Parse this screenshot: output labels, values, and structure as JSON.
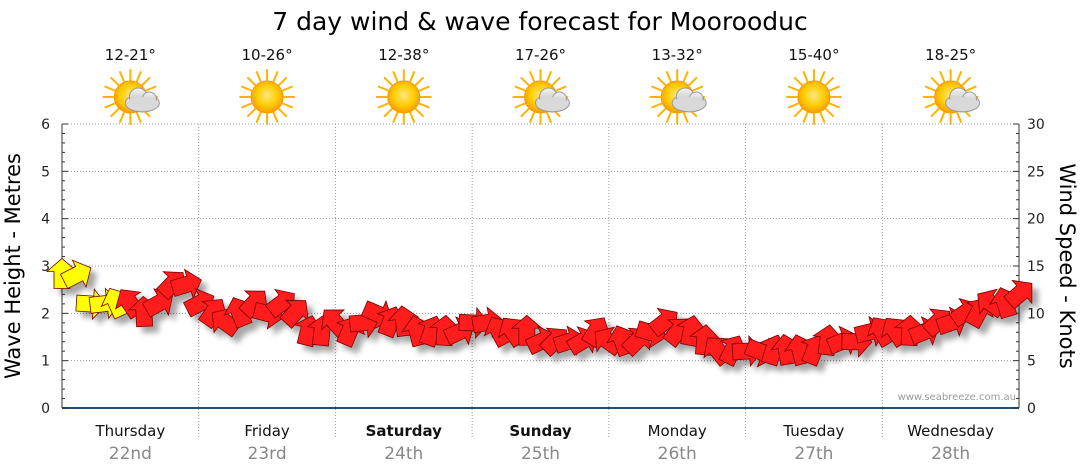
{
  "chart_data": {
    "type": "line",
    "title": "7 day wind & wave forecast for Moorooduc",
    "y_left_label": "Wave Height - Metres",
    "y_right_label": "Wind Speed - Knots",
    "y_left_range": [
      0,
      6
    ],
    "y_right_range": [
      0,
      30
    ],
    "y_left_ticks": [
      "0",
      "1",
      "2",
      "3",
      "4",
      "5",
      "6"
    ],
    "y_right_ticks": [
      "0",
      "5",
      "10",
      "15",
      "20",
      "25",
      "30"
    ],
    "grid": true,
    "days": [
      {
        "name": "Thursday",
        "date": "22nd",
        "bold": false,
        "temp": "12-21°",
        "icon": "partly-cloudy-icon"
      },
      {
        "name": "Friday",
        "date": "23rd",
        "bold": false,
        "temp": "10-26°",
        "icon": "sunny-icon"
      },
      {
        "name": "Saturday",
        "date": "24th",
        "bold": true,
        "temp": "12-38°",
        "icon": "sunny-icon"
      },
      {
        "name": "Sunday",
        "date": "25th",
        "bold": true,
        "temp": "17-26°",
        "icon": "partly-cloudy-icon"
      },
      {
        "name": "Monday",
        "date": "26th",
        "bold": false,
        "temp": "13-32°",
        "icon": "partly-cloudy-icon"
      },
      {
        "name": "Tuesday",
        "date": "27th",
        "bold": false,
        "temp": "15-40°",
        "icon": "sunny-icon"
      },
      {
        "name": "Wednesday",
        "date": "28th",
        "bold": false,
        "temp": "18-25°",
        "icon": "partly-cloudy-icon"
      }
    ],
    "series": [
      {
        "name": "Wind Speed - Knots",
        "color": "#ff1a1a",
        "highlight_color": "#ffff00",
        "x_day": [
          0.0,
          0.1,
          0.2,
          0.3,
          0.4,
          0.5,
          0.6,
          0.7,
          0.8,
          0.9,
          1.0,
          1.1,
          1.2,
          1.3,
          1.4,
          1.5,
          1.6,
          1.7,
          1.8,
          1.9,
          2.0,
          2.1,
          2.2,
          2.3,
          2.4,
          2.5,
          2.6,
          2.7,
          2.8,
          2.9,
          3.0,
          3.1,
          3.2,
          3.3,
          3.4,
          3.5,
          3.6,
          3.7,
          3.8,
          3.9,
          4.0,
          4.1,
          4.2,
          4.3,
          4.4,
          4.5,
          4.6,
          4.7,
          4.8,
          4.9,
          5.0,
          5.1,
          5.2,
          5.3,
          5.4,
          5.5,
          5.6,
          5.7,
          5.8,
          5.9,
          6.0,
          6.1,
          6.2,
          6.3,
          6.4,
          6.5,
          6.6,
          6.7,
          6.8,
          6.9,
          7.0
        ],
        "knots": [
          14,
          14,
          11,
          11,
          11,
          11,
          10,
          11,
          13,
          13,
          11,
          10,
          9,
          10,
          11,
          10,
          11,
          10,
          8,
          8,
          9,
          8,
          9,
          10,
          9,
          9,
          8,
          8,
          8,
          8,
          9,
          9,
          8,
          8,
          8,
          7,
          7,
          7,
          7,
          8,
          7,
          7,
          7,
          8,
          9,
          8,
          8,
          7,
          6,
          6,
          6,
          6,
          6,
          6,
          6,
          6,
          7,
          7,
          7,
          8,
          8,
          8,
          8,
          8,
          9,
          9,
          10,
          10,
          11,
          11,
          12
        ],
        "highlighted_first_points": 5
      }
    ]
  },
  "watermark": "www.seabreeze.com.au"
}
